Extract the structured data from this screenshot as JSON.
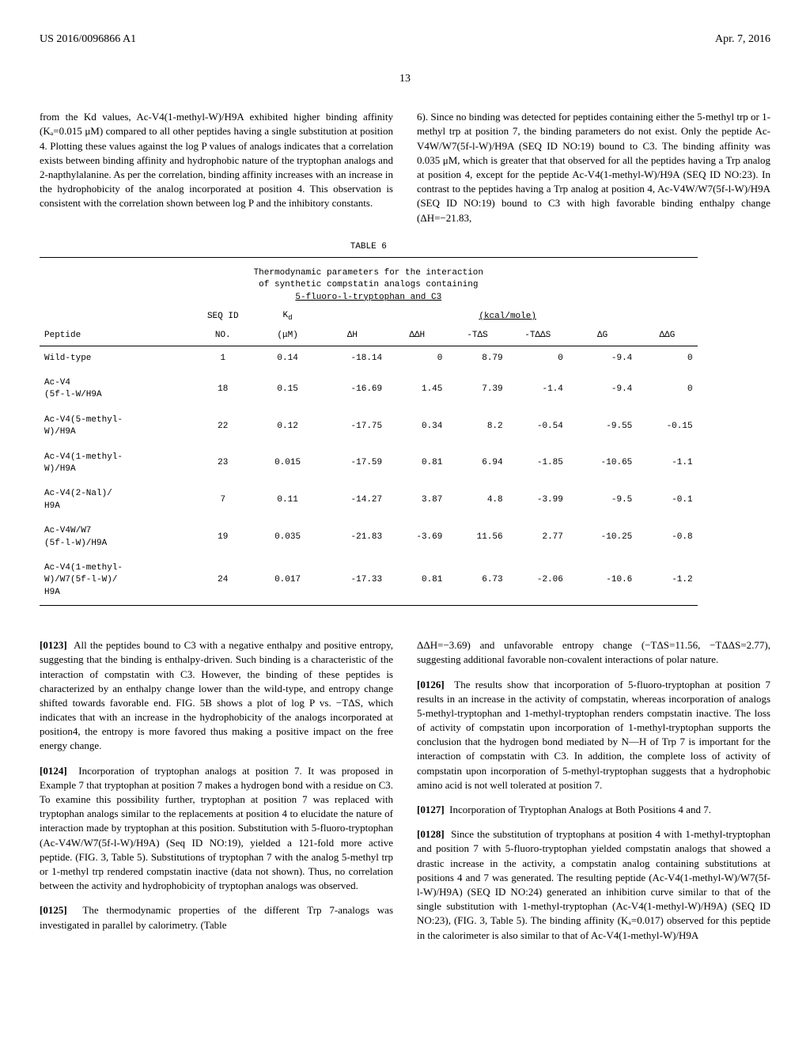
{
  "header": {
    "left": "US 2016/0096866 A1",
    "right": "Apr. 7, 2016"
  },
  "page_number": "13",
  "top_left_text": "from the Kd values, Ac-V4(1-methyl-W)/H9A exhibited higher binding affinity (Kₐ=0.015 μM) compared to all other peptides having a single substitution at position 4. Plotting these values against the log P values of analogs indicates that a correlation exists between binding affinity and hydrophobic nature of the tryptophan analogs and 2-napthylalanine. As per the correlation, binding affinity increases with an increase in the hydrophobicity of the analog incorporated at position 4. This observation is consistent with the correlation shown between log P and the inhibitory constants.",
  "top_right_text": "6). Since no binding was detected for peptides containing either the 5-methyl trp or 1-methyl trp at position 7, the binding parameters do not exist. Only the peptide Ac-V4W/W7(5f-l-W)/H9A (SEQ ID NO:19) bound to C3. The binding affinity was 0.035 μM, which is greater that that observed for all the peptides having a Trp analog at position 4, except for the peptide Ac-V4(1-methyl-W)/H9A (SEQ ID NO:23). In contrast to the peptides having a Trp analog at position 4, Ac-V4W/W7(5f-l-W)/H9A (SEQ ID NO:19) bound to C3 with high favorable binding enthalpy change (ΔH=−21.83,",
  "table6": {
    "title": "TABLE 6",
    "subtitle1": "Thermodynamic parameters for the interaction",
    "subtitle2": "of synthetic compstatin analogs containing",
    "subtitle3": "5-fluoro-l-tryptophan and C3",
    "header_group": "(kcal/mole)",
    "columns": [
      "Peptide",
      "SEQ ID NO.",
      "Kₐ (μM)",
      "ΔH",
      "ΔΔH",
      "-TΔS",
      "-TΔΔS",
      "ΔG",
      "ΔΔG"
    ],
    "rows": [
      [
        "Wild-type",
        "1",
        "0.14",
        "-18.14",
        "0",
        "8.79",
        "0",
        "-9.4",
        "0"
      ],
      [
        "Ac-V4\n(5f-l-W/H9A",
        "18",
        "0.15",
        "-16.69",
        "1.45",
        "7.39",
        "-1.4",
        "-9.4",
        "0"
      ],
      [
        "Ac-V4(5-methyl-\nW)/H9A",
        "22",
        "0.12",
        "-17.75",
        "0.34",
        "8.2",
        "-0.54",
        "-9.55",
        "-0.15"
      ],
      [
        "Ac-V4(1-methyl-\nW)/H9A",
        "23",
        "0.015",
        "-17.59",
        "0.81",
        "6.94",
        "-1.85",
        "-10.65",
        "-1.1"
      ],
      [
        "Ac-V4(2-Nal)/\nH9A",
        "7",
        "0.11",
        "-14.27",
        "3.87",
        "4.8",
        "-3.99",
        "-9.5",
        "-0.1"
      ],
      [
        "Ac-V4W/W7\n(5f-l-W)/H9A",
        "19",
        "0.035",
        "-21.83",
        "-3.69",
        "11.56",
        "2.77",
        "-10.25",
        "-0.8"
      ],
      [
        "Ac-V4(1-methyl-\nW)/W7(5f-l-W)/\nH9A",
        "24",
        "0.017",
        "-17.33",
        "0.81",
        "6.73",
        "-2.06",
        "-10.6",
        "-1.2"
      ]
    ]
  },
  "para_0123": "All the peptides bound to C3 with a negative enthalpy and positive entropy, suggesting that the binding is enthalpy-driven. Such binding is a characteristic of the interaction of compstatin with C3. However, the binding of these peptides is characterized by an enthalpy change lower than the wild-type, and entropy change shifted towards favorable end. FIG. 5B shows a plot of log P vs. −TΔS, which indicates that with an increase in the hydrophobicity of the analogs incorporated at position4, the entropy is more favored thus making a positive impact on the free energy change.",
  "para_0124": "Incorporation of tryptophan analogs at position 7. It was proposed in Example 7 that tryptophan at position 7 makes a hydrogen bond with a residue on C3. To examine this possibility further, tryptophan at position 7 was replaced with tryptophan analogs similar to the replacements at position 4 to elucidate the nature of interaction made by tryptophan at this position. Substitution with 5-fluoro-tryptophan (Ac-V4W/W7(5f-l-W)/H9A) (Seq ID NO:19), yielded a 121-fold more active peptide. (FIG. 3, Table 5). Substitutions of tryptophan 7 with the analog 5-methyl trp or 1-methyl trp rendered compstatin inactive (data not shown). Thus, no correlation between the activity and hydrophobicity of tryptophan analogs was observed.",
  "para_0125": "The thermodynamic properties of the different Trp 7-analogs was investigated in parallel by calorimetry. (Table",
  "right_top_text": "ΔΔH=−3.69) and unfavorable entropy change (−TΔS=11.56, −TΔΔS=2.77), suggesting additional favorable non-covalent interactions of polar nature.",
  "para_0126": "The results show that incorporation of 5-fluoro-tryptophan at position 7 results in an increase in the activity of compstatin, whereas incorporation of analogs 5-methyl-tryptophan and 1-methyl-tryptophan renders compstatin inactive. The loss of activity of compstatin upon incorporation of 1-methyl-tryptophan supports the conclusion that the hydrogen bond mediated by N—H of Trp 7 is important for the interaction of compstatin with C3. In addition, the complete loss of activity of compstatin upon incorporation of 5-methyl-tryptophan suggests that a hydrophobic amino acid is not well tolerated at position 7.",
  "para_0127": "Incorporation of Tryptophan Analogs at Both Positions 4 and 7.",
  "para_0128": "Since the substitution of tryptophans at position 4 with 1-methyl-tryptophan and position 7 with 5-fluoro-tryptophan yielded compstatin analogs that showed a drastic increase in the activity, a compstatin analog containing substitutions at positions 4 and 7 was generated. The resulting peptide (Ac-V4(1-methyl-W)/W7(5f-l-W)/H9A) (SEQ ID NO:24) generated an inhibition curve similar to that of the single substitution with 1-methyl-tryptophan (Ac-V4(1-methyl-W)/H9A) (SEQ ID NO:23), (FIG. 3, Table 5). The binding affinity (Kₐ=0.017) observed for this peptide in the calorimeter is also similar to that of Ac-V4(1-methyl-W)/H9A",
  "labels": {
    "p0123": "[0123]",
    "p0124": "[0124]",
    "p0125": "[0125]",
    "p0126": "[0126]",
    "p0127": "[0127]",
    "p0128": "[0128]"
  }
}
